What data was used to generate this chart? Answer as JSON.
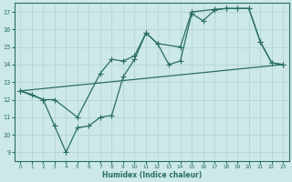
{
  "xlabel": "Humidex (Indice chaleur)",
  "xlim": [
    -0.5,
    23.5
  ],
  "ylim": [
    8.5,
    17.5
  ],
  "xticks": [
    0,
    1,
    2,
    3,
    4,
    5,
    6,
    7,
    8,
    9,
    10,
    11,
    12,
    13,
    14,
    15,
    16,
    17,
    18,
    19,
    20,
    21,
    22,
    23
  ],
  "yticks": [
    9,
    10,
    11,
    12,
    13,
    14,
    15,
    16,
    17
  ],
  "bg_color": "#cce8e8",
  "line_color": "#2a6e62",
  "grid_color": "#b8d8d8",
  "line1_x": [
    0,
    1,
    2,
    3,
    4,
    5,
    6,
    7,
    8,
    9,
    10,
    11,
    12,
    13,
    14,
    15,
    16,
    17,
    18,
    19,
    20,
    21,
    22,
    23
  ],
  "line1_y": [
    12.5,
    12.3,
    12.0,
    10.5,
    9.0,
    10.4,
    10.5,
    11.0,
    11.1,
    13.3,
    14.3,
    15.8,
    15.2,
    14.0,
    14.2,
    16.9,
    16.5,
    17.1,
    17.2,
    17.2,
    17.2,
    15.3,
    14.1,
    14.0
  ],
  "line2_x": [
    0,
    2,
    3,
    5,
    7,
    8,
    9,
    10,
    11,
    12,
    14,
    15,
    17,
    18,
    19,
    20,
    21,
    22,
    23
  ],
  "line2_y": [
    12.5,
    12.0,
    12.0,
    11.0,
    13.5,
    14.3,
    14.2,
    14.5,
    15.8,
    15.2,
    15.0,
    17.0,
    17.15,
    17.2,
    17.2,
    17.2,
    15.3,
    14.1,
    14.0
  ],
  "line3_x": [
    0,
    23
  ],
  "line3_y": [
    12.5,
    14.0
  ],
  "marker": "D"
}
